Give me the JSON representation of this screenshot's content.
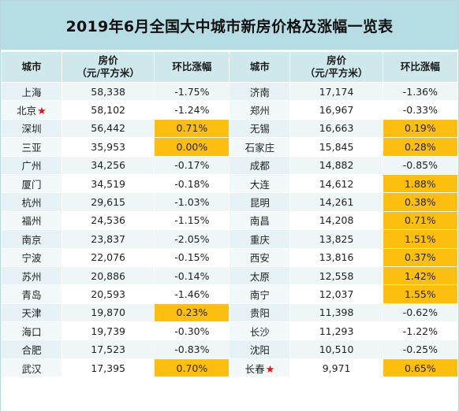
{
  "title": "2019年6月全国大中城市新房价格及涨幅一览表",
  "header": {
    "city": "城市",
    "price_line1": "房价",
    "price_line2": "（元/平方米）",
    "change": "环比涨幅"
  },
  "star_glyph": "★",
  "highlight_color": "#fcbf10",
  "rows": [
    {
      "left": {
        "city": "上海",
        "price": "58,338",
        "change": "-1.75%"
      },
      "right": {
        "city": "济南",
        "price": "17,174",
        "change": "-1.36%"
      }
    },
    {
      "left": {
        "city": "北京",
        "price": "58,102",
        "change": "-1.24%"
      },
      "right": {
        "city": "郑州",
        "price": "16,967",
        "change": "-0.33%"
      }
    },
    {
      "left": {
        "city": "深圳",
        "price": "56,442",
        "change": "0.71%"
      },
      "right": {
        "city": "无锡",
        "price": "16,663",
        "change": "0.19%"
      }
    },
    {
      "left": {
        "city": "三亚",
        "price": "35,953",
        "change": "0.00%"
      },
      "right": {
        "city": "石家庄",
        "price": "15,845",
        "change": "0.28%"
      }
    },
    {
      "left": {
        "city": "广州",
        "price": "34,256",
        "change": "-0.17%"
      },
      "right": {
        "city": "成都",
        "price": "14,882",
        "change": "-0.85%"
      }
    },
    {
      "left": {
        "city": "厦门",
        "price": "34,519",
        "change": "-0.18%"
      },
      "right": {
        "city": "大连",
        "price": "14,612",
        "change": "1.88%"
      }
    },
    {
      "left": {
        "city": "杭州",
        "price": "29,615",
        "change": "-1.03%"
      },
      "right": {
        "city": "昆明",
        "price": "14,261",
        "change": "0.38%"
      }
    },
    {
      "left": {
        "city": "福州",
        "price": "24,536",
        "change": "-1.15%"
      },
      "right": {
        "city": "南昌",
        "price": "14,208",
        "change": "0.71%"
      }
    },
    {
      "left": {
        "city": "南京",
        "price": "23,837",
        "change": "-2.05%"
      },
      "right": {
        "city": "重庆",
        "price": "13,825",
        "change": "1.51%"
      }
    },
    {
      "left": {
        "city": "宁波",
        "price": "22,076",
        "change": "-0.15%"
      },
      "right": {
        "city": "西安",
        "price": "13,816",
        "change": "0.37%"
      }
    },
    {
      "left": {
        "city": "苏州",
        "price": "20,886",
        "change": "-0.14%"
      },
      "right": {
        "city": "太原",
        "price": "12,558",
        "change": "1.42%"
      }
    },
    {
      "left": {
        "city": "青岛",
        "price": "20,593",
        "change": "-1.46%"
      },
      "right": {
        "city": "南宁",
        "price": "12,037",
        "change": "1.55%"
      }
    },
    {
      "left": {
        "city": "天津",
        "price": "19,870",
        "change": "0.23%"
      },
      "right": {
        "city": "贵阳",
        "price": "11,398",
        "change": "-0.62%"
      }
    },
    {
      "left": {
        "city": "海口",
        "price": "19,739",
        "change": "-0.30%"
      },
      "right": {
        "city": "长沙",
        "price": "11,293",
        "change": "-1.22%"
      }
    },
    {
      "left": {
        "city": "合肥",
        "price": "17,523",
        "change": "-0.83%"
      },
      "right": {
        "city": "沈阳",
        "price": "10,510",
        "change": "-0.25%"
      }
    },
    {
      "left": {
        "city": "武汉",
        "price": "17,395",
        "change": "0.70%"
      },
      "right": {
        "city": "长春",
        "price": "9,971",
        "change": "0.65%"
      }
    }
  ]
}
